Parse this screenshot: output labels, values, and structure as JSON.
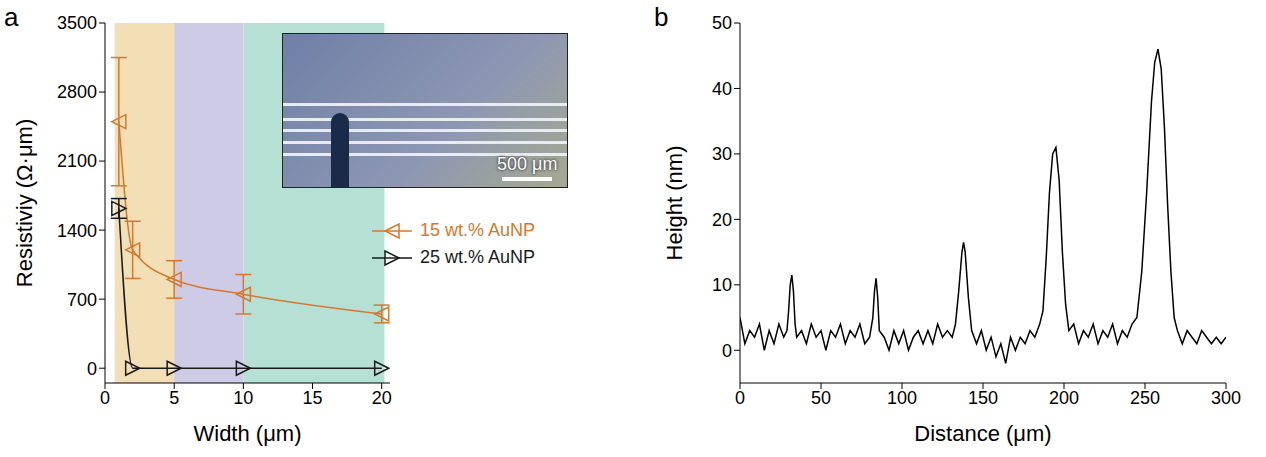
{
  "chart_data": [
    {
      "type": "line",
      "title": "a",
      "x_label": "Width (μm)",
      "y_label": "Resistiviy (Ω·μm)",
      "xlim": [
        0,
        20.6
      ],
      "xticks": [
        0,
        5,
        10,
        15,
        20
      ],
      "ylim": [
        -150,
        3500
      ],
      "yticks": [
        0,
        700,
        1400,
        2100,
        2800,
        3500
      ],
      "legend": "right",
      "regions": [
        {
          "x": [
            0.7,
            5
          ],
          "color": "#f3dfb5"
        },
        {
          "x": [
            5,
            10
          ],
          "color": "#cdcbe6"
        },
        {
          "x": [
            10,
            20.2
          ],
          "color": "#b6e0d4"
        }
      ],
      "annotations": [
        {
          "text": "500 μm"
        }
      ],
      "series": [
        {
          "name": "15 wt.% AuNP",
          "color": "#d4782f",
          "marker": "triangle-left",
          "line_style": "smooth",
          "x": [
            1,
            2,
            5,
            10,
            20
          ],
          "values": [
            2500,
            1200,
            900,
            750,
            550
          ],
          "errors": [
            650,
            290,
            190,
            200,
            90
          ]
        },
        {
          "name": "25 wt.% AuNP",
          "color": "#1a1a1a",
          "marker": "triangle-right",
          "line_style": "smooth",
          "x": [
            1,
            2,
            5,
            10,
            20
          ],
          "values": [
            1620,
            0,
            0,
            0,
            0
          ],
          "errors": [
            100,
            0,
            0,
            0,
            0
          ]
        }
      ]
    },
    {
      "type": "line",
      "title": "b",
      "x_label": "Distance (μm)",
      "y_label": "Height (nm)",
      "xlim": [
        0,
        300
      ],
      "xticks": [
        0,
        50,
        100,
        150,
        200,
        250,
        300
      ],
      "ylim": [
        -5,
        50
      ],
      "yticks": [
        0,
        10,
        20,
        30,
        40,
        50
      ],
      "series": [
        {
          "color": "#000000",
          "line_style": "solid",
          "x": [
            0,
            3,
            6,
            9,
            12,
            15,
            18,
            21,
            24,
            27,
            29,
            30,
            31,
            32,
            33,
            34,
            35,
            38,
            41,
            44,
            47,
            50,
            53,
            56,
            59,
            62,
            65,
            68,
            71,
            74,
            77,
            80,
            82,
            83,
            84,
            85,
            86,
            89,
            92,
            95,
            98,
            101,
            104,
            107,
            110,
            113,
            116,
            119,
            122,
            125,
            128,
            131,
            133,
            135,
            137,
            138,
            139,
            141,
            143,
            146,
            149,
            152,
            155,
            158,
            161,
            164,
            167,
            170,
            173,
            176,
            179,
            182,
            185,
            187,
            189,
            191,
            193,
            195,
            197,
            199,
            201,
            203,
            206,
            209,
            212,
            215,
            218,
            221,
            224,
            227,
            230,
            233,
            236,
            239,
            242,
            245,
            248,
            251,
            254,
            256,
            258,
            260,
            262,
            264,
            266,
            268,
            270,
            273,
            276,
            279,
            282,
            285,
            288,
            291,
            294,
            297,
            300
          ],
          "values": [
            5,
            1,
            3,
            2,
            4,
            0,
            3,
            1,
            4,
            2,
            3,
            6,
            10,
            11.5,
            9,
            4,
            2,
            3,
            1,
            4,
            2,
            3,
            0,
            3,
            2,
            4,
            1,
            3,
            2,
            4,
            1,
            2,
            5,
            9,
            11,
            8,
            3,
            2,
            0,
            3,
            1,
            3,
            0,
            2,
            3,
            1,
            3,
            1,
            4,
            2,
            3,
            2,
            4,
            9,
            15,
            16.5,
            15,
            8,
            3,
            1,
            3,
            0,
            2,
            -1,
            1,
            -2,
            2,
            0,
            2,
            1,
            3,
            2,
            4,
            6,
            14,
            24,
            30,
            31,
            26,
            15,
            7,
            3,
            4,
            1,
            3,
            2,
            4,
            1,
            3,
            2,
            4,
            1,
            3,
            2,
            4,
            5,
            12,
            24,
            38,
            44,
            46,
            43,
            34,
            22,
            12,
            5,
            3,
            1,
            3,
            2,
            1,
            3,
            2,
            1,
            2,
            1,
            2
          ]
        }
      ]
    }
  ]
}
